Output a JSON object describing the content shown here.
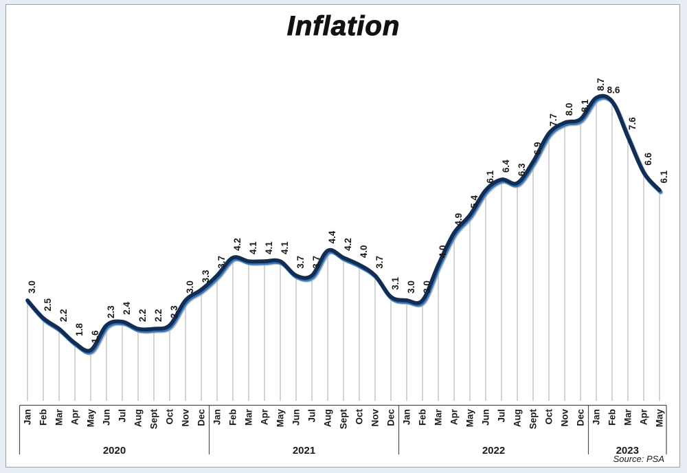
{
  "page": {
    "background_color": "#e8edf5",
    "panel_border_color": "#9aa0a8"
  },
  "chart_data": {
    "type": "line",
    "title": "Inflation",
    "source_note": "Source: PSA",
    "xlabel": "",
    "ylabel": "",
    "ylim": [
      0,
      9.3
    ],
    "grid": "vertical-droplines-per-month",
    "legend": "none",
    "line_color": "#132c52",
    "line_highlight_color": "#2e78c2",
    "line_shadow_color": "#a8a8a8",
    "dropline_color": "#a9a9a9",
    "axis_color": "#4d4d4d",
    "label_color": "#1a1a1a",
    "years": [
      {
        "year": "2020",
        "months": [
          "Jan",
          "Feb",
          "Mar",
          "Apr",
          "May",
          "Jun",
          "Jul",
          "Aug",
          "Sept",
          "Oct",
          "Nov",
          "Dec"
        ],
        "values": [
          3.0,
          2.5,
          2.2,
          1.8,
          1.6,
          2.3,
          2.4,
          2.2,
          2.2,
          2.3,
          3.0,
          3.3
        ]
      },
      {
        "year": "2021",
        "months": [
          "Jan",
          "Feb",
          "Mar",
          "Apr",
          "May",
          "Jun",
          "Jul",
          "Aug",
          "Sept",
          "Oct",
          "Nov",
          "Dec"
        ],
        "values": [
          3.7,
          4.2,
          4.1,
          4.1,
          4.1,
          3.7,
          3.7,
          4.4,
          4.2,
          4.0,
          3.7,
          3.1
        ]
      },
      {
        "year": "2022",
        "months": [
          "Jan",
          "Feb",
          "Mar",
          "Apr",
          "May",
          "Jun",
          "Jul",
          "Aug",
          "Sept",
          "Oct",
          "Nov",
          "Dec"
        ],
        "values": [
          3.0,
          3.0,
          4.0,
          4.9,
          5.4,
          6.1,
          6.4,
          6.3,
          6.9,
          7.7,
          8.0,
          8.1
        ]
      },
      {
        "year": "2023",
        "months": [
          "Jan",
          "Feb",
          "Mar",
          "Apr",
          "May"
        ],
        "values": [
          8.7,
          8.6,
          7.6,
          6.6,
          6.1
        ]
      }
    ],
    "horizontal_label": {
      "year": "2023",
      "month": "Feb"
    }
  }
}
